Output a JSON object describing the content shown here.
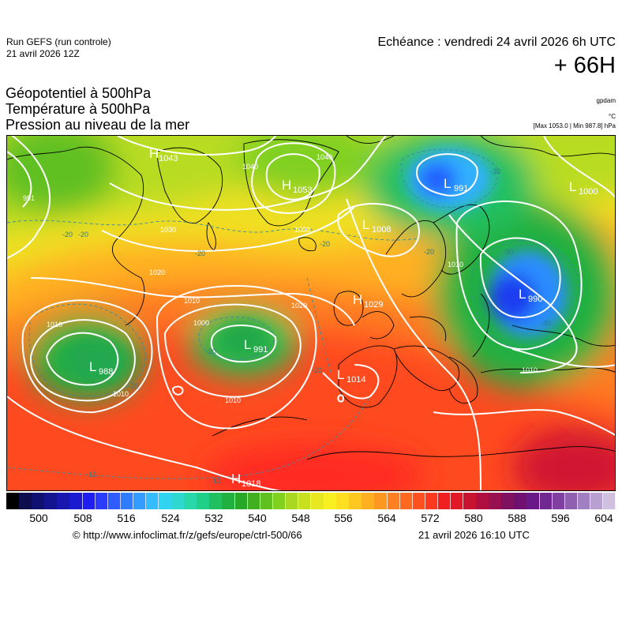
{
  "header": {
    "run_name": "Run GEFS (run controle)",
    "run_date": "21 avril 2026 12Z",
    "echeance": "Echéance : vendredi 24 avril 2026 6h UTC",
    "horizon": "+ 66H"
  },
  "parameters": [
    {
      "label": "Géopotentiel à 500hPa",
      "unit": "gpdam"
    },
    {
      "label": "Température à 500hPa",
      "unit": "°C"
    },
    {
      "label": "Pression au niveau de la mer",
      "unit": "[Max 1053.0 | Min 987.8] hPa"
    }
  ],
  "pressure_centers": [
    {
      "type": "H",
      "value": "1043"
    },
    {
      "type": "H",
      "value": "1053"
    },
    {
      "type": "L",
      "value": "991"
    },
    {
      "type": "L",
      "value": "1000"
    },
    {
      "type": "L",
      "value": "1008"
    },
    {
      "type": "L",
      "value": "990"
    },
    {
      "type": "H",
      "value": "1029"
    },
    {
      "type": "L",
      "value": "991"
    },
    {
      "type": "L",
      "value": "988"
    },
    {
      "type": "L",
      "value": "1014"
    },
    {
      "type": "H",
      "value": "1018"
    }
  ],
  "isobar_labels": [
    "991",
    "1040",
    "1030",
    "1020",
    "1010",
    "1000",
    "1030",
    "1020",
    "1010",
    "1010",
    "1010",
    "1010",
    "1010",
    "1040"
  ],
  "isotherm_labels": [
    "-20",
    "-20",
    "-20",
    "-30",
    "-30",
    "-20",
    "-30",
    "-20",
    "-20",
    "-20",
    "-20",
    "-10",
    "-10"
  ],
  "colorbar": {
    "ticks": [
      "500",
      "508",
      "516",
      "524",
      "532",
      "540",
      "548",
      "556",
      "564",
      "572",
      "580",
      "588",
      "596",
      "604"
    ],
    "colors": [
      "#000000",
      "#0d0d4d",
      "#101070",
      "#141490",
      "#1818b0",
      "#1a1ad0",
      "#1e1ef0",
      "#2a3cff",
      "#2e5cff",
      "#2f7cff",
      "#339cff",
      "#33bcff",
      "#30d4f0",
      "#2cd8d0",
      "#28d8a8",
      "#20d088",
      "#20c060",
      "#20b040",
      "#28a828",
      "#40b020",
      "#60c020",
      "#80d020",
      "#a8d820",
      "#c8e020",
      "#e8e820",
      "#f8f020",
      "#ffe020",
      "#ffc820",
      "#ffb020",
      "#ff9820",
      "#ff8020",
      "#ff6820",
      "#ff5020",
      "#ff3820",
      "#f02020",
      "#e01828",
      "#c81430",
      "#b01040",
      "#981050",
      "#801060",
      "#701070",
      "#681888",
      "#702890",
      "#8040a0",
      "#9060b0",
      "#a080c0",
      "#b8a0d0",
      "#d0c0e0"
    ]
  },
  "footer": {
    "credit": "© http://www.infoclimat.fr/z/gefs/europe/ctrl-500/66",
    "generated": "21 avril 2026 16:10 UTC"
  },
  "colors": {
    "coast": "#000000",
    "isobar": "#ffffff",
    "isotherm": "#3a8aa0"
  }
}
